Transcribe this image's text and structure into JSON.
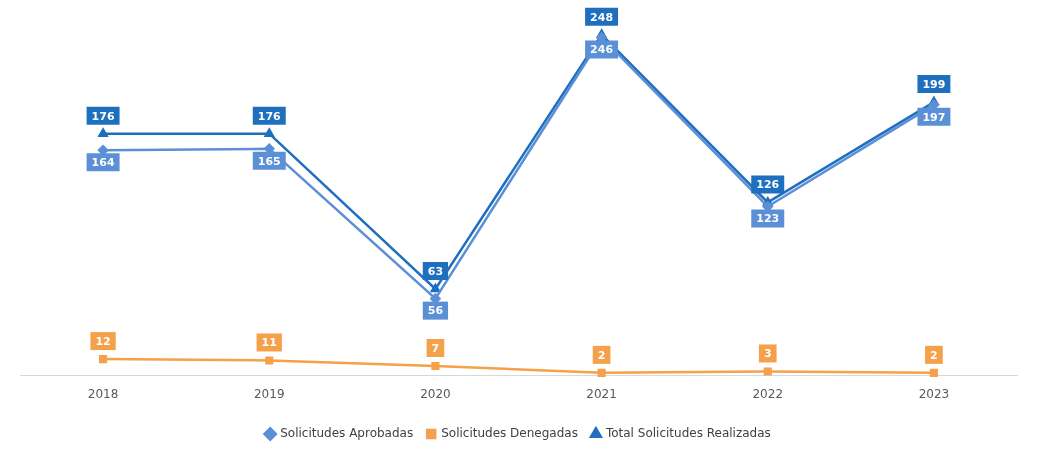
{
  "chart_data": {
    "type": "line",
    "categories": [
      "2018",
      "2019",
      "2020",
      "2021",
      "2022",
      "2023"
    ],
    "series": [
      {
        "name": "Solicitudes Aprobadas",
        "color": "#5b8fd6",
        "marker": "diamond",
        "values": [
          164,
          165,
          56,
          246,
          123,
          197
        ]
      },
      {
        "name": "Solicitudes Denegadas",
        "color": "#f5a04a",
        "marker": "square",
        "values": [
          12,
          11,
          7,
          2,
          3,
          2
        ]
      },
      {
        "name": "Total Solicitudes Realizadas",
        "color": "#1f6fbf",
        "marker": "triangle",
        "values": [
          176,
          176,
          63,
          248,
          126,
          199
        ]
      }
    ],
    "tick_labels": "x",
    "grid": false,
    "data_labels": true,
    "legend": "bottom"
  }
}
